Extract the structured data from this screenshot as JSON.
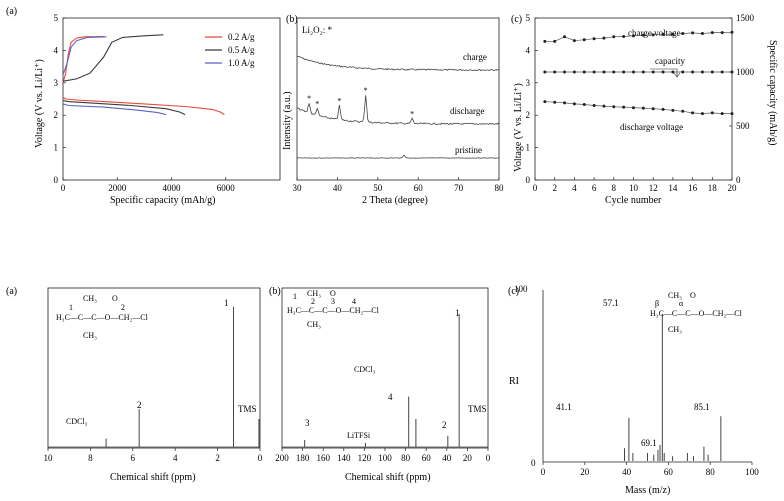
{
  "colors": {
    "axis": "#222222",
    "red": "#e8493a",
    "dark": "#3a3a3a",
    "blue": "#5b62c7",
    "grey": "#555555"
  },
  "chart_data": [
    {
      "type": "line",
      "panel": "(a)",
      "xlabel": "Specific capacity (mAh/g)",
      "ylabel": "Voltage (V vs. Li/Li⁺)",
      "xlim": [
        0,
        8000
      ],
      "ylim": [
        0,
        5
      ],
      "xticks": [
        "0",
        "2000",
        "4000",
        "6000"
      ],
      "yticks": [
        "0",
        "1",
        "2",
        "3",
        "4",
        "5"
      ],
      "legend": [
        "0.2 A/g",
        "0.5 A/g",
        "1.0 A/g"
      ],
      "series": [
        {
          "name": "0.2 A/g charge",
          "color": "red",
          "points": [
            [
              0,
              3.0
            ],
            [
              100,
              3.3
            ],
            [
              200,
              3.9
            ],
            [
              300,
              4.25
            ],
            [
              500,
              4.38
            ],
            [
              800,
              4.42
            ],
            [
              1500,
              4.43
            ]
          ]
        },
        {
          "name": "0.2 A/g discharge",
          "color": "red",
          "points": [
            [
              0,
              2.55
            ],
            [
              100,
              2.5
            ],
            [
              500,
              2.47
            ],
            [
              1500,
              2.42
            ],
            [
              3000,
              2.35
            ],
            [
              4500,
              2.27
            ],
            [
              5500,
              2.18
            ],
            [
              5800,
              2.1
            ],
            [
              5950,
              2.02
            ]
          ]
        },
        {
          "name": "0.5 A/g charge",
          "color": "dark",
          "points": [
            [
              0,
              3.05
            ],
            [
              500,
              3.12
            ],
            [
              1000,
              3.3
            ],
            [
              1500,
              3.8
            ],
            [
              1800,
              4.25
            ],
            [
              2200,
              4.4
            ],
            [
              3000,
              4.45
            ],
            [
              3700,
              4.48
            ]
          ]
        },
        {
          "name": "0.5 A/g discharge",
          "color": "dark",
          "points": [
            [
              0,
              2.45
            ],
            [
              200,
              2.42
            ],
            [
              1000,
              2.38
            ],
            [
              2500,
              2.3
            ],
            [
              3800,
              2.2
            ],
            [
              4300,
              2.1
            ],
            [
              4500,
              2.02
            ]
          ]
        },
        {
          "name": "1.0 A/g charge",
          "color": "blue",
          "points": [
            [
              0,
              3.25
            ],
            [
              150,
              3.6
            ],
            [
              300,
              4.1
            ],
            [
              500,
              4.3
            ],
            [
              900,
              4.4
            ],
            [
              1600,
              4.42
            ]
          ]
        },
        {
          "name": "1.0 A/g discharge",
          "color": "blue",
          "points": [
            [
              0,
              2.35
            ],
            [
              200,
              2.3
            ],
            [
              1500,
              2.25
            ],
            [
              2800,
              2.15
            ],
            [
              3500,
              2.08
            ],
            [
              3800,
              2.02
            ]
          ]
        }
      ]
    },
    {
      "type": "line",
      "panel": "(b)",
      "xlabel": "2 Theta (degree)",
      "ylabel": "Intensity (a.u.)",
      "xlim": [
        30,
        80
      ],
      "xticks": [
        "30",
        "40",
        "50",
        "60",
        "70",
        "80"
      ],
      "marker_note": "Li₂O₂: *",
      "traces": [
        "charge",
        "discharge",
        "pristine"
      ],
      "discharge_peaks_2theta": [
        33,
        35,
        40.5,
        47,
        58.5
      ]
    },
    {
      "type": "scatter",
      "panel": "(c)",
      "xlabel": "Cycle number",
      "ylabel": "Voltage (V vs. Li/Li⁺)",
      "y2label": "Specific capacity (mAh/g)",
      "xlim": [
        0,
        20
      ],
      "ylim": [
        0,
        5
      ],
      "y2lim": [
        0,
        1500
      ],
      "xticks": [
        "0",
        "2",
        "4",
        "6",
        "8",
        "10",
        "12",
        "14",
        "16",
        "18",
        "20"
      ],
      "yticks": [
        "0",
        "1",
        "2",
        "3",
        "4",
        "5"
      ],
      "y2ticks": [
        "0",
        "500",
        "1000",
        "1500"
      ],
      "annotations": [
        "charge voltage",
        "capacity",
        "discharge voltage"
      ],
      "x": [
        1,
        2,
        3,
        4,
        5,
        6,
        7,
        8,
        9,
        10,
        11,
        12,
        13,
        14,
        15,
        16,
        17,
        18,
        19,
        20
      ],
      "series": [
        {
          "name": "charge voltage",
          "values": [
            4.28,
            4.28,
            4.42,
            4.3,
            4.33,
            4.36,
            4.38,
            4.42,
            4.43,
            4.45,
            4.47,
            4.48,
            4.5,
            4.5,
            4.52,
            4.54,
            4.52,
            4.55,
            4.55,
            4.56
          ]
        },
        {
          "name": "capacity (right axis)",
          "values": [
            1000,
            1000,
            1000,
            1000,
            1000,
            1000,
            1000,
            1000,
            1000,
            1000,
            1000,
            1000,
            1000,
            1000,
            1000,
            1000,
            1000,
            1000,
            1000,
            1000
          ]
        },
        {
          "name": "discharge voltage",
          "values": [
            2.42,
            2.4,
            2.38,
            2.35,
            2.33,
            2.3,
            2.28,
            2.26,
            2.25,
            2.23,
            2.22,
            2.2,
            2.18,
            2.15,
            2.12,
            2.07,
            2.05,
            2.07,
            2.05,
            2.05
          ]
        }
      ]
    },
    {
      "type": "bar",
      "panel": "(a)",
      "xlabel": "Chemical shift (ppm)",
      "xlim": [
        10,
        0
      ],
      "xticks": [
        "10",
        "8",
        "6",
        "4",
        "2",
        "0"
      ],
      "peaks": [
        {
          "label": "CDCl₃",
          "ppm": 7.26,
          "height": 0.06
        },
        {
          "label": "2",
          "ppm": 5.7,
          "height": 0.27
        },
        {
          "label": "1",
          "ppm": 1.25,
          "height": 1.0
        },
        {
          "label": "TMS",
          "ppm": 0.05,
          "height": 0.2
        }
      ],
      "structure_labels": [
        "CH₃",
        "O",
        "2",
        "1",
        "H₃C—C—C—O—CH₂—Cl",
        "CH₃"
      ]
    },
    {
      "type": "bar",
      "panel": "(b)",
      "xlabel": "Chemical shift (ppm)",
      "xlim": [
        200,
        0
      ],
      "xticks": [
        "200",
        "180",
        "160",
        "140",
        "120",
        "100",
        "80",
        "60",
        "40",
        "20",
        "0"
      ],
      "peaks": [
        {
          "label": "3",
          "ppm": 178,
          "height": 0.05
        },
        {
          "label": "LiTFSi",
          "ppm": 119,
          "height": 0.03
        },
        {
          "label": "CDCl₃",
          "ppm": 77,
          "height": 0.36
        },
        {
          "label": "4",
          "ppm": 70,
          "height": 0.2
        },
        {
          "label": "2",
          "ppm": 39,
          "height": 0.08
        },
        {
          "label": "1",
          "ppm": 28,
          "height": 0.95
        },
        {
          "label": "TMS",
          "ppm": 0,
          "height": 0.12
        }
      ],
      "structure_labels": [
        "1",
        "CH₃",
        "O",
        "4",
        "H₃C—C—C—O—CH₂—Cl",
        "2",
        "3",
        "CH₃"
      ]
    },
    {
      "type": "bar",
      "panel": "(c)",
      "xlabel": "Mass (m/z)",
      "ylabel": "RI",
      "xlim": [
        0,
        100
      ],
      "ylim": [
        0,
        100
      ],
      "xticks": [
        "0",
        "20",
        "40",
        "60",
        "80",
        "100"
      ],
      "yticks": [
        "0",
        "100"
      ],
      "peaks": [
        {
          "mz": 39,
          "ri": 8
        },
        {
          "mz": 41.1,
          "ri": 27
        },
        {
          "mz": 43,
          "ri": 5
        },
        {
          "mz": 50,
          "ri": 5
        },
        {
          "mz": 53,
          "ri": 4
        },
        {
          "mz": 55,
          "ri": 7
        },
        {
          "mz": 56,
          "ri": 10
        },
        {
          "mz": 57.1,
          "ri": 92
        },
        {
          "mz": 58,
          "ri": 5
        },
        {
          "mz": 62,
          "ri": 3
        },
        {
          "mz": 69.1,
          "ri": 5
        },
        {
          "mz": 72,
          "ri": 3
        },
        {
          "mz": 77,
          "ri": 9
        },
        {
          "mz": 79,
          "ri": 4
        },
        {
          "mz": 85.1,
          "ri": 28
        }
      ],
      "peak_labels": [
        "41.1",
        "57.1",
        "69.1",
        "85.1"
      ],
      "structure_labels": [
        "CH₃",
        "O",
        "β",
        "α",
        "H₃C—C—C—O—CH₂—Cl",
        "CH₃"
      ]
    }
  ],
  "text": {
    "a1_panel": "(a)",
    "a1_ylabel": "Voltage (V vs. Li/Li⁺)",
    "a1_xlabel": "Specific capacity (mAh/g)",
    "a1_leg1": "0.2 A/g",
    "a1_leg2": "0.5 A/g",
    "a1_leg3": "1.0 A/g",
    "b1_panel": "(b)",
    "b1_marker": "Li₂O₂: *",
    "b1_ylabel": "Intensity (a.u.)",
    "b1_xlabel": "2 Theta (degree)",
    "b1_charge": "charge",
    "b1_discharge": "discharge",
    "b1_pristine": "pristine",
    "c1_panel": "(c)",
    "c1_ylabel": "Voltage (V vs. Li/Li⁺)",
    "c1_y2label": "Specific capacity (mAh/g)",
    "c1_xlabel": "Cycle number",
    "c1_charge": "charge voltage",
    "c1_capacity": "capacity",
    "c1_discharge": "discharge voltage",
    "a2_panel": "(a)",
    "a2_xlabel": "Chemical shift (ppm)",
    "a2_cdcl3": "CDCl₃",
    "a2_p2": "2",
    "a2_p1": "1",
    "a2_tms": "TMS",
    "b2_panel": "(b)",
    "b2_xlabel": "Chemical shift (ppm)",
    "b2_p3": "3",
    "b2_litfsi": "LiTFSi",
    "b2_cdcl3": "CDCl₃",
    "b2_p4": "4",
    "b2_p2": "2",
    "b2_p1": "1",
    "b2_tms": "TMS",
    "c2_panel": "(c)",
    "c2_ylabel": "RI",
    "c2_xlabel": "Mass (m/z)",
    "c2_l411": "41.1",
    "c2_l571": "57.1",
    "c2_l691": "69.1",
    "c2_l851": "85.1",
    "c2_y100": "100",
    "c2_y0": "0",
    "s_ch3": "CH₃",
    "s_o": "O",
    "s_chain": "H₃C—C—C—O—CH₂—Cl",
    "s_1": "1",
    "s_2": "2",
    "s_3": "3",
    "s_4": "4",
    "s_beta": "β",
    "s_alpha": "α"
  }
}
